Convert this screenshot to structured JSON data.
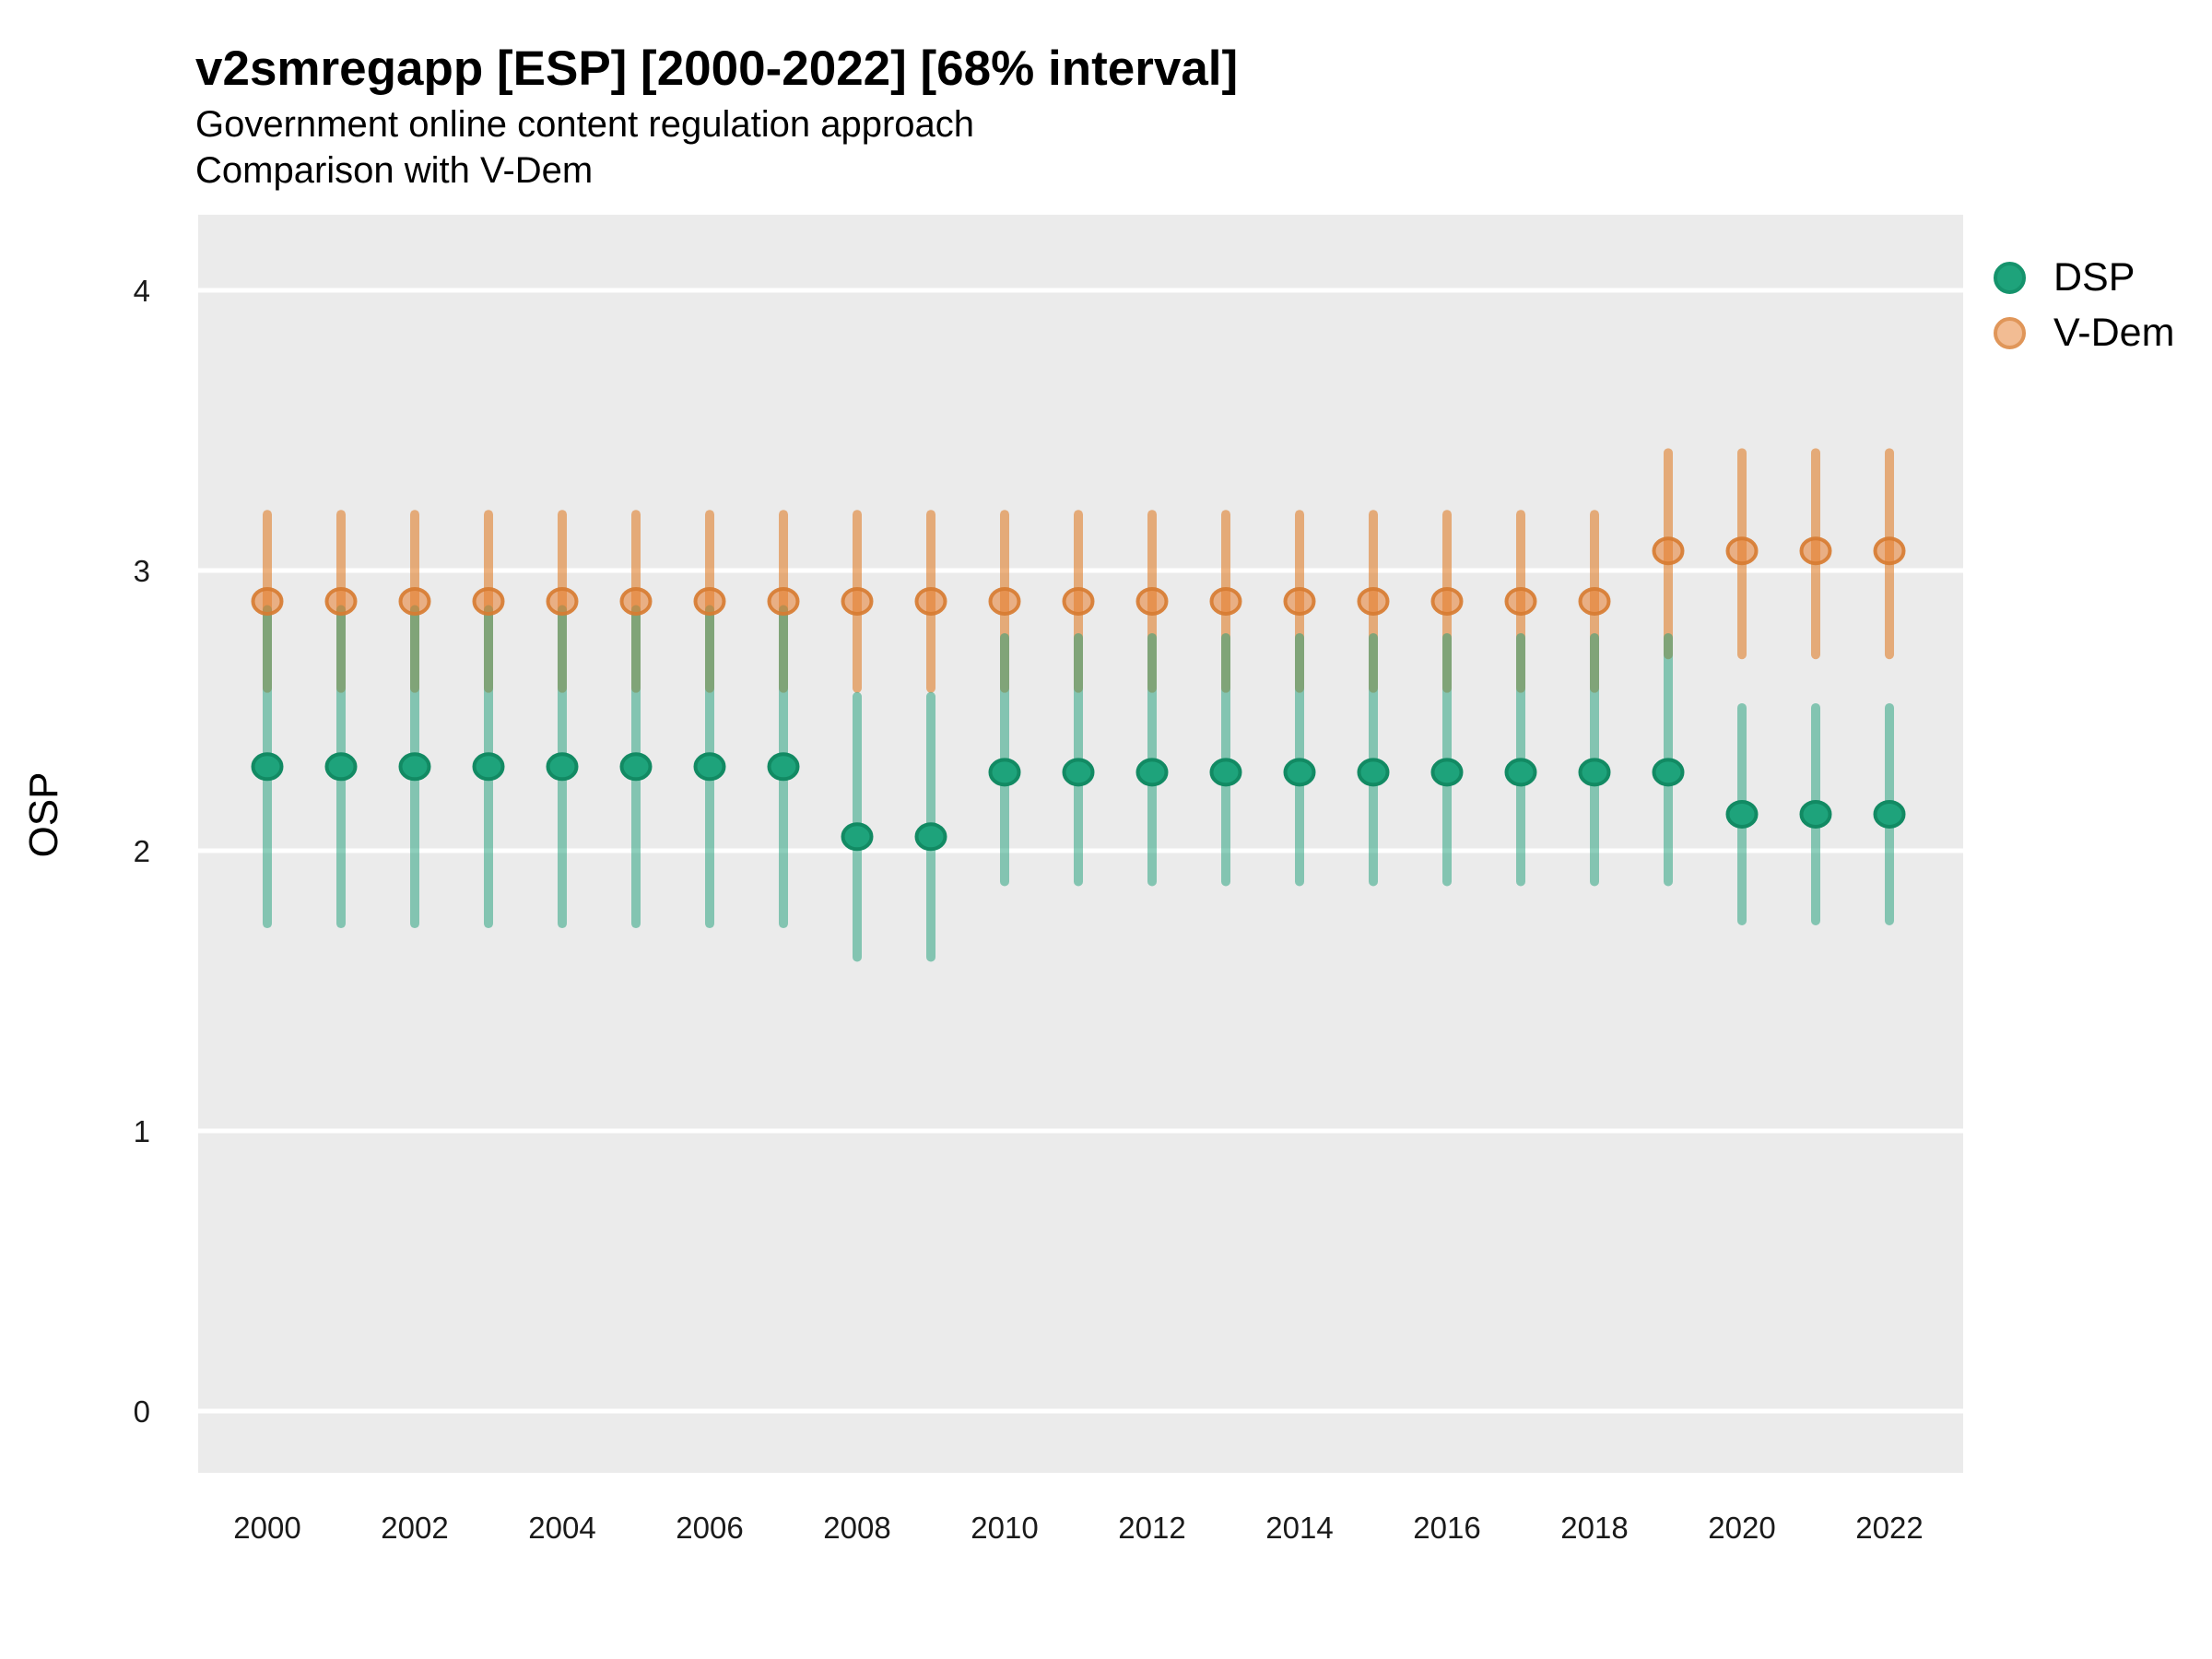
{
  "header": {
    "title": "v2smregapp [ESP] [2000-2022] [68% interval]",
    "subtitle1": "Government online content regulation approach",
    "subtitle2": "Comparison with V-Dem"
  },
  "y_axis": {
    "label": "OSP",
    "tick_labels": [
      "0",
      "1",
      "2",
      "3",
      "4"
    ]
  },
  "x_axis": {
    "tick_labels": [
      "2000",
      "2002",
      "2004",
      "2006",
      "2008",
      "2010",
      "2012",
      "2014",
      "2016",
      "2018",
      "2020",
      "2022"
    ]
  },
  "legend": {
    "items": [
      {
        "label": "DSP",
        "marker_fill": "#1EA37B",
        "marker_stroke": "#15936C"
      },
      {
        "label": "V-Dem",
        "marker_fill": "#F2BC93",
        "marker_stroke": "#E09659"
      }
    ]
  },
  "colors": {
    "panel_background": "#EBEBEB",
    "gridline": "#FFFFFF",
    "axis_text": "#1A1A1A",
    "dsp_green": "#1B9E77",
    "vdem_orange": "#E08232"
  },
  "chart_data": {
    "type": "pointrange",
    "title": "v2smregapp [ESP] [2000-2022] [68% interval]",
    "subtitle": [
      "Government online content regulation approach",
      "Comparison with V-Dem"
    ],
    "xlabel": "",
    "ylabel": "OSP",
    "x": [
      2000,
      2001,
      2002,
      2003,
      2004,
      2005,
      2006,
      2007,
      2008,
      2009,
      2010,
      2011,
      2012,
      2013,
      2014,
      2015,
      2016,
      2017,
      2018,
      2019,
      2020,
      2021,
      2022
    ],
    "x_ticks_shown": [
      2000,
      2002,
      2004,
      2006,
      2008,
      2010,
      2012,
      2014,
      2016,
      2018,
      2020,
      2022
    ],
    "ylim": [
      -0.22,
      4.22
    ],
    "yticks": [
      0,
      1,
      2,
      3,
      4
    ],
    "grid": "major-horizontal",
    "legend_position": "right-top",
    "interval_level": "68%",
    "series": [
      {
        "name": "V-Dem",
        "point_fill": "rgba(231,126,48,0.55)",
        "point_stroke": "rgba(215,124,50,0.92)",
        "stick_color": "rgba(224,130,50,0.62)",
        "est": [
          2.89,
          2.89,
          2.89,
          2.89,
          2.89,
          2.89,
          2.89,
          2.89,
          2.89,
          2.89,
          2.89,
          2.89,
          2.89,
          2.89,
          2.89,
          2.89,
          2.89,
          2.89,
          2.89,
          3.07,
          3.07,
          3.07,
          3.07
        ],
        "lower": [
          2.58,
          2.58,
          2.58,
          2.58,
          2.58,
          2.58,
          2.58,
          2.58,
          2.58,
          2.58,
          2.58,
          2.58,
          2.58,
          2.58,
          2.58,
          2.58,
          2.58,
          2.58,
          2.58,
          2.7,
          2.7,
          2.7,
          2.7
        ],
        "upper": [
          3.2,
          3.2,
          3.2,
          3.2,
          3.2,
          3.2,
          3.2,
          3.2,
          3.2,
          3.2,
          3.2,
          3.2,
          3.2,
          3.2,
          3.2,
          3.2,
          3.2,
          3.2,
          3.2,
          3.42,
          3.42,
          3.42,
          3.42
        ]
      },
      {
        "name": "DSP",
        "point_fill": "#1EA37B",
        "point_stroke": "#128A63",
        "stick_color": "rgba(27,158,119,0.50)",
        "est": [
          2.3,
          2.3,
          2.3,
          2.3,
          2.3,
          2.3,
          2.3,
          2.3,
          2.05,
          2.05,
          2.28,
          2.28,
          2.28,
          2.28,
          2.28,
          2.28,
          2.28,
          2.28,
          2.28,
          2.28,
          2.13,
          2.13,
          2.13
        ],
        "lower": [
          1.74,
          1.74,
          1.74,
          1.74,
          1.74,
          1.74,
          1.74,
          1.74,
          1.62,
          1.62,
          1.89,
          1.89,
          1.89,
          1.89,
          1.89,
          1.89,
          1.89,
          1.89,
          1.89,
          1.89,
          1.75,
          1.75,
          1.75
        ],
        "upper": [
          2.86,
          2.86,
          2.86,
          2.86,
          2.86,
          2.86,
          2.86,
          2.86,
          2.55,
          2.55,
          2.76,
          2.76,
          2.76,
          2.76,
          2.76,
          2.76,
          2.76,
          2.76,
          2.76,
          2.76,
          2.51,
          2.51,
          2.51
        ]
      }
    ]
  }
}
